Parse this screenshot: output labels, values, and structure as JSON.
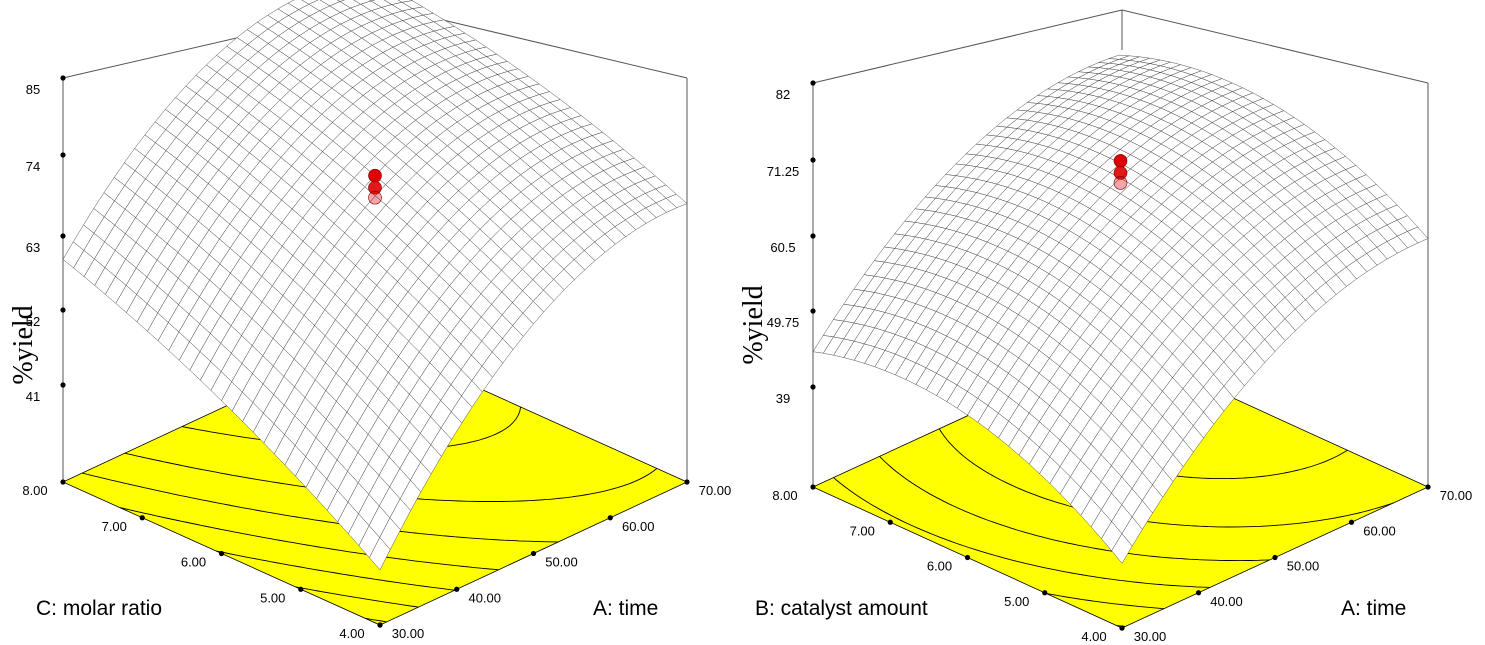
{
  "chart_data": [
    {
      "type": "surface3d",
      "z_label": "%yield",
      "z_ticks": [
        "85",
        "74",
        "63",
        "52",
        "41"
      ],
      "zlim": [
        30,
        85
      ],
      "x_label": "A: time",
      "x_ticks": [
        "30.00",
        "40.00",
        "50.00",
        "60.00",
        "70.00"
      ],
      "xlim": [
        30,
        70
      ],
      "y_label": "C: molar ratio",
      "y_ticks": [
        "4.00",
        "5.00",
        "6.00",
        "7.00",
        "8.00"
      ],
      "ylim": [
        4,
        8
      ],
      "surface_corners": {
        "A30_C4": 30.0,
        "A70_C4": 60.0,
        "A30_C8": 53.5,
        "A70_C8": 71.0,
        "A50_C6_max_ridge": 85.0
      },
      "design_point_yield": 69,
      "surface_color": "#ffffff",
      "contour_fill": "#ffff00",
      "point_color": "#e00000"
    },
    {
      "type": "surface3d",
      "z_label": "%yield",
      "z_ticks": [
        "82",
        "71.25",
        "60.5",
        "49.75",
        "39"
      ],
      "zlim": [
        28.25,
        82
      ],
      "x_label": "A: time",
      "x_ticks": [
        "30.00",
        "40.00",
        "50.00",
        "60.00",
        "70.00"
      ],
      "xlim": [
        30,
        70
      ],
      "y_label": "B: catalyst amount",
      "y_ticks": [
        "4.00",
        "5.00",
        "6.00",
        "7.00",
        "8.00"
      ],
      "ylim": [
        4,
        8
      ],
      "surface_corners": {
        "A30_B4": 32.0,
        "A70_B4": 60.0,
        "A30_B8": 39.5,
        "A70_B8": 67.0,
        "A50_B6_max_ridge": 82.0
      },
      "design_point_yield": 69,
      "surface_color": "#ffffff",
      "contour_fill": "#ffff00",
      "point_color": "#e00000"
    }
  ]
}
